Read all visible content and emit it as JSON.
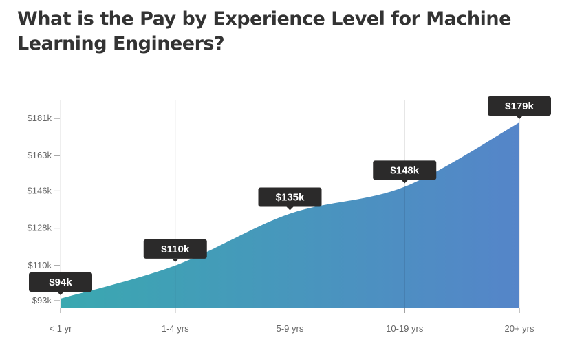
{
  "chart_data": {
    "type": "area",
    "title": "What is the Pay by Experience Level for Machine Learning Engineers?",
    "categories": [
      "< 1 yr",
      "1-4 yrs",
      "5-9 yrs",
      "10-19 yrs",
      "20+ yrs"
    ],
    "values": [
      94,
      110,
      135,
      148,
      179
    ],
    "data_labels": [
      "$94k",
      "$110k",
      "$135k",
      "$148k",
      "$179k"
    ],
    "yticks": [
      93,
      110,
      128,
      146,
      163,
      181
    ],
    "ytick_labels": [
      "$93k",
      "$110k",
      "$128k",
      "$146k",
      "$163k",
      "$181k"
    ],
    "unit": "thousands USD",
    "ylim": [
      89.3,
      181
    ],
    "grid": "vertical",
    "colors": {
      "gradient_start": "#3aa8b0",
      "gradient_end": "#5585c9",
      "label_bg": "#2b2a2a",
      "grid": "#dddddd"
    }
  }
}
